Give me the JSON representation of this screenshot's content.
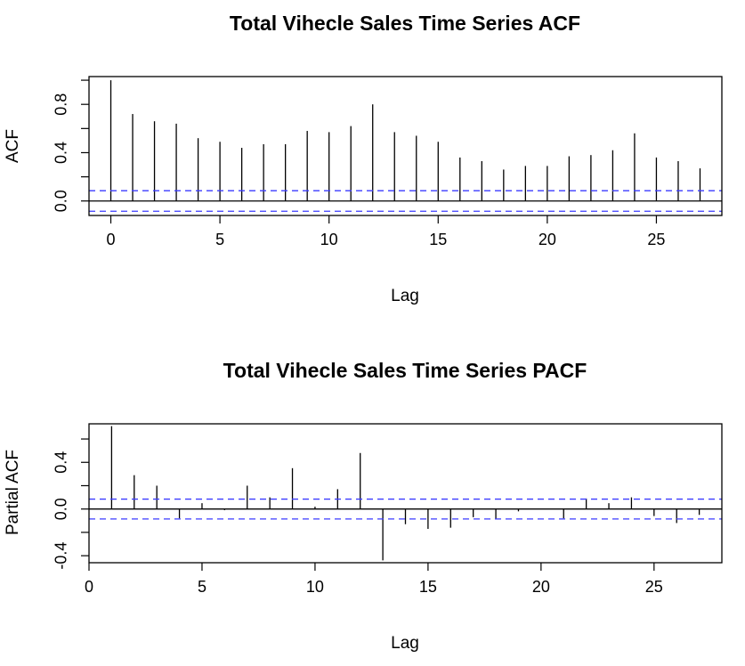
{
  "chart_data": [
    {
      "type": "bar",
      "title": "Total Vihecle Sales Time Series ACF",
      "xlabel": "Lag",
      "ylabel": "ACF",
      "x": [
        0,
        1,
        2,
        3,
        4,
        5,
        6,
        7,
        8,
        9,
        10,
        11,
        12,
        13,
        14,
        15,
        16,
        17,
        18,
        19,
        20,
        21,
        22,
        23,
        24,
        25,
        26,
        27
      ],
      "values": [
        1.0,
        0.72,
        0.66,
        0.64,
        0.52,
        0.49,
        0.44,
        0.47,
        0.47,
        0.58,
        0.57,
        0.62,
        0.8,
        0.57,
        0.54,
        0.49,
        0.36,
        0.33,
        0.26,
        0.29,
        0.29,
        0.37,
        0.38,
        0.42,
        0.56,
        0.36,
        0.33,
        0.27
      ],
      "xlim": [
        -1,
        28
      ],
      "ylim": [
        -0.12,
        1.03
      ],
      "xticks": [
        "0",
        "5",
        "10",
        "15",
        "20",
        "25"
      ],
      "yticks": [
        "0.0",
        "0.4",
        "0.8"
      ],
      "ci": 0.085,
      "grid": false,
      "colors": {
        "bars": "#000000",
        "ci": "#3b3bff",
        "axes": "#000000"
      }
    },
    {
      "type": "bar",
      "title": "Total Vihecle Sales Time Series PACF",
      "xlabel": "Lag",
      "ylabel": "Partial ACF",
      "x": [
        1,
        2,
        3,
        4,
        5,
        6,
        7,
        8,
        9,
        10,
        11,
        12,
        13,
        14,
        15,
        16,
        17,
        18,
        19,
        20,
        21,
        22,
        23,
        24,
        25,
        26,
        27
      ],
      "values": [
        0.71,
        0.29,
        0.2,
        -0.08,
        0.05,
        -0.01,
        0.2,
        0.1,
        0.35,
        0.02,
        0.17,
        0.48,
        -0.44,
        -0.13,
        -0.17,
        -0.16,
        -0.07,
        -0.09,
        -0.02,
        0.0,
        -0.08,
        0.09,
        0.05,
        0.1,
        -0.06,
        -0.12,
        -0.05
      ],
      "xlim": [
        0,
        28
      ],
      "ylim": [
        -0.46,
        0.73
      ],
      "xticks": [
        "0",
        "5",
        "10",
        "15",
        "20",
        "25"
      ],
      "yticks": [
        "-0.4",
        "0.0",
        "0.4"
      ],
      "ci": 0.085,
      "grid": false,
      "colors": {
        "bars": "#000000",
        "ci": "#3b3bff",
        "axes": "#000000"
      }
    }
  ]
}
